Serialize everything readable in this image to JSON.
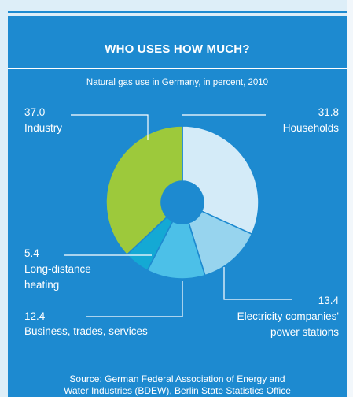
{
  "header": {
    "title": "WHO USES HOW MUCH?",
    "subtitle": "Natural gas use in Germany, in percent, 2010"
  },
  "source": {
    "line1": "Source: German Federal Association of Energy and",
    "line2": "Water Industries (BDEW), Berlin State Statistics Office"
  },
  "chart_data": {
    "type": "pie",
    "title": "WHO USES HOW MUCH?",
    "subtitle": "Natural gas use in Germany, in percent, 2010",
    "donut": true,
    "slices": [
      {
        "label": "Households",
        "value": 31.8,
        "value_label": "31.8",
        "label_lines": [
          "Households"
        ],
        "color": "#d4ebf8"
      },
      {
        "label": "Electricity companies' power stations",
        "value": 13.4,
        "value_label": "13.4",
        "label_lines": [
          "Electricity companies'",
          "power stations"
        ],
        "color": "#97d4ee"
      },
      {
        "label": "Business, trades, services",
        "value": 12.4,
        "value_label": "12.4",
        "label_lines": [
          "Business, trades, services"
        ],
        "color": "#4cc0e8"
      },
      {
        "label": "Long-distance heating",
        "value": 5.4,
        "value_label": "5.4",
        "label_lines": [
          "Long-distance",
          "heating"
        ],
        "color": "#14a9d4"
      },
      {
        "label": "Industry",
        "value": 37.0,
        "value_label": "37.0",
        "label_lines": [
          "Industry"
        ],
        "color": "#9dc93b"
      }
    ]
  }
}
